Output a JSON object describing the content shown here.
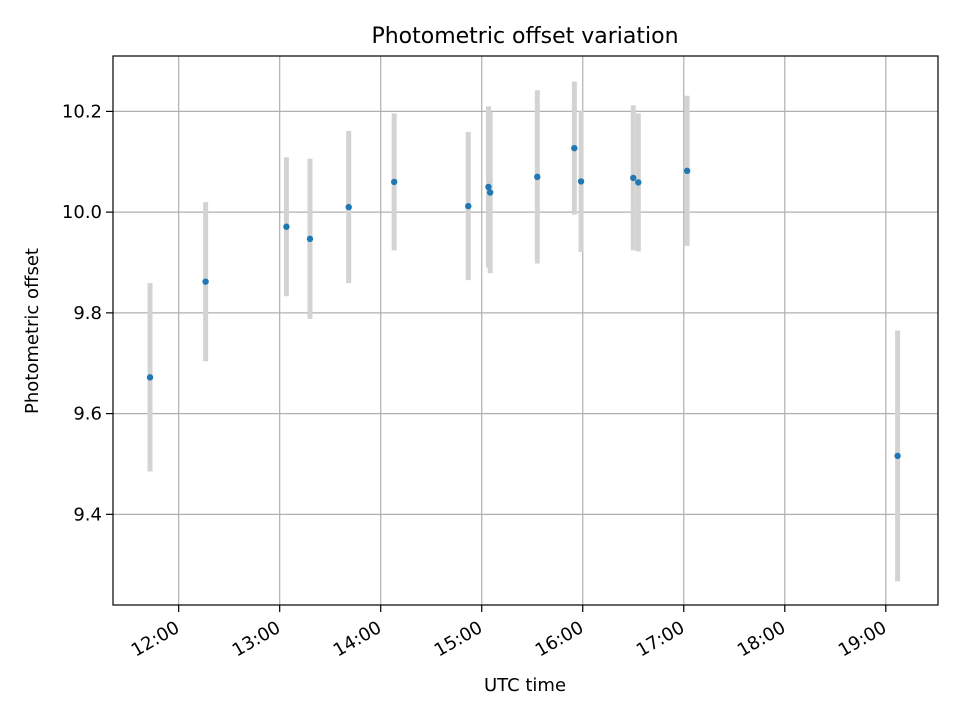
{
  "chart_data": {
    "type": "scatter",
    "title": "Photometric offset variation",
    "xlabel": "UTC time",
    "ylabel": "Photometric offset",
    "x_unit": "time of day (UTC)",
    "xlim": [
      "11:21",
      "19:31"
    ],
    "ylim": [
      9.22,
      10.31
    ],
    "grid": true,
    "legend": "none",
    "x_ticks": [
      "12:00",
      "13:00",
      "14:00",
      "15:00",
      "16:00",
      "17:00",
      "18:00",
      "19:00"
    ],
    "y_ticks": [
      9.4,
      9.6,
      9.8,
      10.0,
      10.2
    ],
    "y_tick_labels": [
      "9.4",
      "9.6",
      "9.8",
      "10.0",
      "10.2"
    ],
    "series": [
      {
        "marker_color": "#1f77b4",
        "errorbar_color": "#d3d3d3",
        "points": [
          {
            "time": "11:43",
            "y": 9.672,
            "err": 0.187
          },
          {
            "time": "12:16",
            "y": 9.862,
            "err": 0.158
          },
          {
            "time": "13:04",
            "y": 9.971,
            "err": 0.138
          },
          {
            "time": "13:18",
            "y": 9.947,
            "err": 0.159
          },
          {
            "time": "13:41",
            "y": 10.01,
            "err": 0.151
          },
          {
            "time": "14:08",
            "y": 10.06,
            "err": 0.136
          },
          {
            "time": "14:52",
            "y": 10.012,
            "err": 0.147
          },
          {
            "time": "15:04",
            "y": 10.05,
            "err": 0.16
          },
          {
            "time": "15:05",
            "y": 10.039,
            "err": 0.16
          },
          {
            "time": "15:33",
            "y": 10.07,
            "err": 0.172
          },
          {
            "time": "15:55",
            "y": 10.127,
            "err": 0.132
          },
          {
            "time": "15:59",
            "y": 10.061,
            "err": 0.14
          },
          {
            "time": "16:30",
            "y": 10.068,
            "err": 0.144
          },
          {
            "time": "16:33",
            "y": 10.059,
            "err": 0.137
          },
          {
            "time": "17:02",
            "y": 10.082,
            "err": 0.149
          },
          {
            "time": "19:07",
            "y": 9.516,
            "err": 0.249
          }
        ]
      }
    ]
  }
}
